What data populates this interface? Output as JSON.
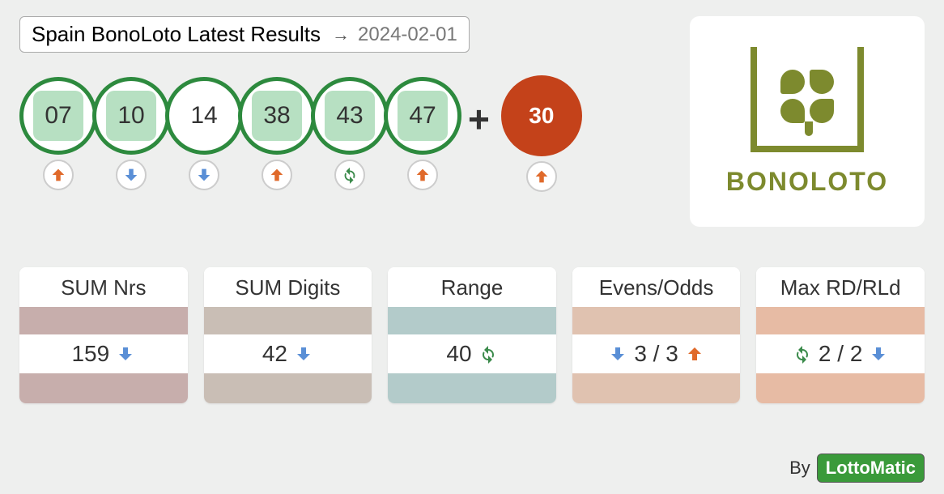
{
  "title": "Spain BonoLoto Latest Results",
  "date": "2024-02-01",
  "ball_border_color": "#2d8a3e",
  "ball_fill_color": "#b7e0c2",
  "ball_text_color": "#333333",
  "bonus_bg_color": "#c4421a",
  "bonus_text_color": "#ffffff",
  "trend_colors": {
    "up": "#e06a2b",
    "down": "#5a8fd6",
    "same": "#3a8a4a"
  },
  "balls": [
    {
      "value": "07",
      "filled": true,
      "trend": "up"
    },
    {
      "value": "10",
      "filled": true,
      "trend": "down"
    },
    {
      "value": "14",
      "filled": false,
      "trend": "down"
    },
    {
      "value": "38",
      "filled": true,
      "trend": "up"
    },
    {
      "value": "43",
      "filled": true,
      "trend": "same"
    },
    {
      "value": "47",
      "filled": true,
      "trend": "up"
    }
  ],
  "bonus": {
    "value": "30",
    "trend": "up"
  },
  "logo_text": "BONOLOTO",
  "logo_color": "#7d8a2e",
  "stats": [
    {
      "title": "SUM Nrs",
      "value": "159",
      "trend_left": null,
      "trend_right": "down",
      "band_color": "#c7aeac"
    },
    {
      "title": "SUM Digits",
      "value": "42",
      "trend_left": null,
      "trend_right": "down",
      "band_color": "#c9beb5"
    },
    {
      "title": "Range",
      "value": "40",
      "trend_left": null,
      "trend_right": "same",
      "band_color": "#b3cbca"
    },
    {
      "title": "Evens/Odds",
      "value": "3 / 3",
      "trend_left": "down",
      "trend_right": "up",
      "band_color": "#e0c2b0"
    },
    {
      "title": "Max RD/RLd",
      "value": "2 / 2",
      "trend_left": "same",
      "trend_right": "down",
      "band_color": "#e7bba4"
    }
  ],
  "footer_by": "By",
  "footer_brand": "LottoMatic"
}
